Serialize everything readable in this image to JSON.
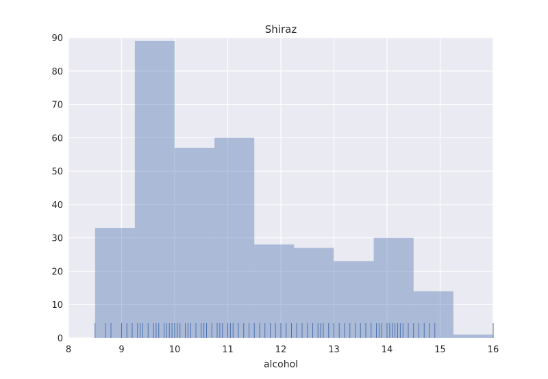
{
  "chart_data": {
    "type": "histogram",
    "title": "Shiraz",
    "xlabel": "alcohol",
    "ylabel": "",
    "xlim": [
      8,
      16
    ],
    "ylim": [
      0,
      90
    ],
    "xticks": [
      "8",
      "9",
      "10",
      "11",
      "12",
      "13",
      "14",
      "15",
      "16"
    ],
    "yticks": [
      "0",
      "10",
      "20",
      "30",
      "40",
      "50",
      "60",
      "70",
      "80",
      "90"
    ],
    "grid": true,
    "bar_color": "#4C72B0",
    "bar_opacity": 0.4,
    "bins": [
      {
        "x0": 8.5,
        "x1": 9.25,
        "count": 33
      },
      {
        "x0": 9.25,
        "x1": 10.0,
        "count": 89
      },
      {
        "x0": 10.0,
        "x1": 10.75,
        "count": 57
      },
      {
        "x0": 10.75,
        "x1": 11.5,
        "count": 60
      },
      {
        "x0": 11.5,
        "x1": 12.25,
        "count": 28
      },
      {
        "x0": 12.25,
        "x1": 13.0,
        "count": 27
      },
      {
        "x0": 13.0,
        "x1": 13.75,
        "count": 23
      },
      {
        "x0": 13.75,
        "x1": 14.5,
        "count": 30
      },
      {
        "x0": 14.5,
        "x1": 15.25,
        "count": 14
      },
      {
        "x0": 15.25,
        "x1": 16.0,
        "count": 1
      }
    ],
    "rug": {
      "color": "#4C72B0",
      "height": 4.5,
      "values": [
        8.5,
        8.7,
        8.8,
        9.0,
        9.1,
        9.2,
        9.3,
        9.35,
        9.4,
        9.5,
        9.6,
        9.65,
        9.7,
        9.8,
        9.85,
        9.9,
        9.95,
        10.0,
        10.05,
        10.1,
        10.2,
        10.25,
        10.3,
        10.4,
        10.5,
        10.55,
        10.6,
        10.7,
        10.8,
        10.85,
        10.9,
        11.0,
        11.05,
        11.1,
        11.2,
        11.3,
        11.4,
        11.5,
        11.6,
        11.7,
        11.8,
        11.9,
        12.0,
        12.1,
        12.2,
        12.3,
        12.4,
        12.5,
        12.6,
        12.7,
        12.75,
        12.8,
        12.9,
        13.0,
        13.1,
        13.2,
        13.3,
        13.4,
        13.5,
        13.6,
        13.7,
        13.8,
        13.85,
        13.9,
        14.0,
        14.05,
        14.1,
        14.15,
        14.2,
        14.25,
        14.3,
        14.4,
        14.5,
        14.6,
        14.7,
        14.8,
        14.9,
        16.0
      ]
    }
  }
}
